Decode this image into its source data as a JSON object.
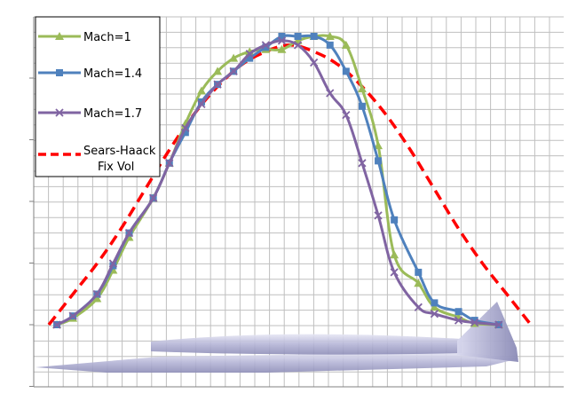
{
  "chart_data": {
    "type": "line",
    "title": "",
    "xlabel": "",
    "ylabel": "",
    "grid": true,
    "xlim": [
      0,
      60
    ],
    "ylim": [
      0,
      70
    ],
    "legend_position": "top-left",
    "series": [
      {
        "name": "Mach=1",
        "color": "#9BBB59",
        "marker": "triangle",
        "dash": false,
        "x": [
          1,
          3,
          6,
          8,
          10,
          13,
          15,
          17,
          19,
          21,
          23,
          25,
          27,
          29,
          31,
          33,
          35,
          37,
          39,
          41,
          43,
          46,
          48,
          51,
          53,
          56
        ],
        "y": [
          0,
          1.5,
          6,
          12.5,
          20,
          29,
          37,
          46,
          53.5,
          58,
          61,
          62.5,
          63,
          63,
          65,
          66,
          66,
          64,
          54,
          41,
          16,
          9.5,
          4,
          1.7,
          0.3,
          0
        ]
      },
      {
        "name": "Mach=1.4",
        "color": "#4F81BD",
        "marker": "square",
        "dash": false,
        "x": [
          1,
          3,
          6,
          8,
          10,
          13,
          15,
          17,
          19,
          21,
          23,
          25,
          27,
          29,
          31,
          33,
          35,
          37,
          39,
          41,
          43,
          46,
          48,
          51,
          53,
          56
        ],
        "y": [
          0,
          2,
          7,
          13.5,
          21,
          29,
          37,
          44,
          51,
          55,
          58,
          61,
          63.5,
          66,
          66,
          66,
          64,
          58,
          50,
          37.5,
          24,
          12,
          5,
          3,
          1,
          0
        ]
      },
      {
        "name": "Mach=1.7",
        "color": "#8064A2",
        "marker": "x",
        "dash": false,
        "x": [
          1,
          3,
          6,
          8,
          10,
          13,
          15,
          17,
          19,
          21,
          23,
          25,
          27,
          29,
          31,
          33,
          35,
          37,
          39,
          41,
          43,
          46,
          48,
          51,
          53,
          56
        ],
        "y": [
          0,
          2,
          7,
          14,
          21,
          29,
          37,
          45,
          50.5,
          55,
          58,
          62,
          64,
          65,
          64,
          60,
          53,
          48,
          37,
          25,
          12,
          4,
          2.5,
          1,
          0.5,
          0
        ]
      },
      {
        "name": "Sears-Haack\nFix Vol",
        "color": "#FF0000",
        "marker": "none",
        "dash": true,
        "x": [
          0,
          3,
          6,
          9,
          12,
          15,
          18,
          21,
          24,
          27,
          30,
          33,
          36,
          39,
          42,
          45,
          48,
          51,
          54,
          57,
          60
        ],
        "y": [
          0,
          7,
          14,
          22,
          31,
          40,
          48,
          54.5,
          59.5,
          62.5,
          64,
          62.5,
          59.5,
          54.5,
          48,
          40,
          31,
          22,
          14,
          7,
          0
        ]
      }
    ]
  },
  "legend": {
    "items": [
      "Mach=1",
      "Mach=1.4",
      "Mach=1.7",
      "Sears-Haack",
      "Fix Vol"
    ]
  },
  "colors": {
    "grid": "#BFBFBF",
    "aircraft": "#9C9CC8"
  }
}
